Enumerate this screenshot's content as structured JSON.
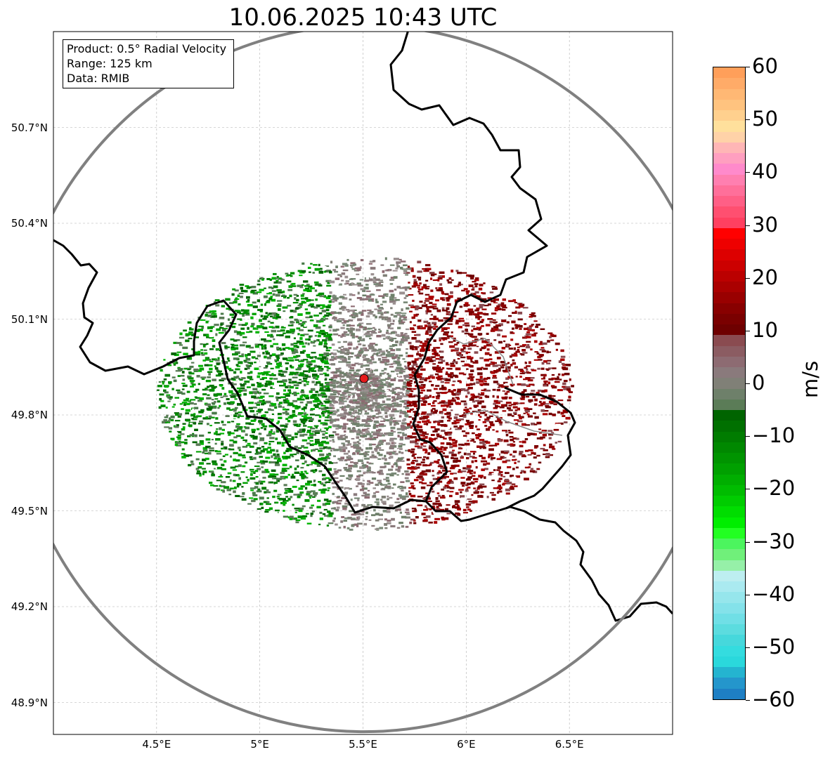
{
  "title": "10.06.2025 10:43 UTC",
  "info": {
    "product": "Product: 0.5° Radial Velocity",
    "range": "Range: 125 km",
    "source": "Data: RMIB"
  },
  "map": {
    "lon_range": [
      4.0,
      7.0
    ],
    "lat_range": [
      48.8,
      51.0
    ],
    "lat_ticks": [
      {
        "value": 48.9,
        "label": "48.9°N"
      },
      {
        "value": 49.2,
        "label": "49.2°N"
      },
      {
        "value": 49.5,
        "label": "49.5°N"
      },
      {
        "value": 49.8,
        "label": "49.8°N"
      },
      {
        "value": 50.1,
        "label": "50.1°N"
      },
      {
        "value": 50.4,
        "label": "50.4°N"
      },
      {
        "value": 50.7,
        "label": "50.7°N"
      }
    ],
    "lon_ticks": [
      {
        "value": 4.5,
        "label": "4.5°E"
      },
      {
        "value": 5.0,
        "label": "5°E"
      },
      {
        "value": 5.5,
        "label": "5.5°E"
      },
      {
        "value": 6.0,
        "label": "6°E"
      },
      {
        "value": 6.5,
        "label": "6.5°E"
      }
    ],
    "radar_site": {
      "lon": 5.505,
      "lat": 49.914,
      "color": "#e41a1c"
    },
    "range_ring_color": "#808080",
    "border_color": "#000000",
    "background": "#ffffff"
  },
  "colorbar": {
    "unit": "m/s",
    "min": -60,
    "max": 60,
    "ticks": [
      {
        "value": 60,
        "label": "60"
      },
      {
        "value": 50,
        "label": "50"
      },
      {
        "value": 40,
        "label": "40"
      },
      {
        "value": 30,
        "label": "30"
      },
      {
        "value": 20,
        "label": "20"
      },
      {
        "value": 10,
        "label": "10"
      },
      {
        "value": 0,
        "label": "0"
      },
      {
        "value": -10,
        "label": "−10"
      },
      {
        "value": -20,
        "label": "−20"
      },
      {
        "value": -30,
        "label": "−30"
      },
      {
        "value": -40,
        "label": "−40"
      },
      {
        "value": -50,
        "label": "−50"
      },
      {
        "value": -60,
        "label": "−60"
      }
    ],
    "colors_top_to_bottom": [
      "#ff9f5a",
      "#ffab68",
      "#ffb874",
      "#ffc37f",
      "#ffd08e",
      "#ffe09c",
      "#ffd2a8",
      "#ffb6b6",
      "#ff9fc0",
      "#ff8acb",
      "#ff7fb0",
      "#ff6f9a",
      "#ff5f86",
      "#ff4f70",
      "#ff4060",
      "#ff0000",
      "#ee0000",
      "#dd0000",
      "#cc0000",
      "#bb0000",
      "#aa0000",
      "#990000",
      "#880000",
      "#7a0000",
      "#6e0000",
      "#8a4b50",
      "#8b5c62",
      "#8d6b72",
      "#8a7a7c",
      "#808077",
      "#6e806a",
      "#5b7c57",
      "#006400",
      "#007000",
      "#007c00",
      "#008800",
      "#009400",
      "#00a000",
      "#00ae00",
      "#00bc00",
      "#00cc00",
      "#00dd00",
      "#00ee00",
      "#22ff22",
      "#4cf55e",
      "#70f07a",
      "#96f0a8",
      "#bdeef0",
      "#aaeaf0",
      "#96e6ec",
      "#84e2ea",
      "#70dfe6",
      "#5cdcdf",
      "#46d8dc",
      "#34dcdf",
      "#2ad8dc",
      "#24b4d0",
      "#2496cc",
      "#1e7fc4"
    ]
  }
}
